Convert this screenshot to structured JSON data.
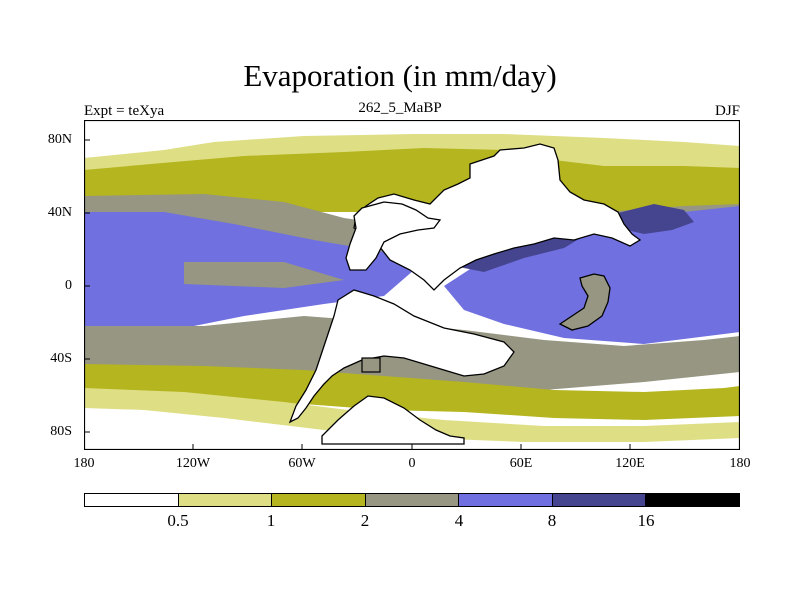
{
  "title": "Evaporation (in mm/day)",
  "subtitle_left": "Expt = teXya",
  "subtitle_center": "262_5_MaBP",
  "subtitle_right": "DJF",
  "axes": {
    "y_ticks": [
      "80N",
      "40N",
      "0",
      "40S",
      "80S"
    ],
    "x_ticks": [
      "180",
      "120W",
      "60W",
      "0",
      "60E",
      "120E",
      "180"
    ]
  },
  "colorbar": {
    "levels": [
      "0.5",
      "1",
      "2",
      "4",
      "8",
      "16"
    ],
    "colors": [
      "#ffffff",
      "#dede85",
      "#b5b51f",
      "#969682",
      "#7070e0",
      "#45458f",
      "#000000"
    ]
  }
}
